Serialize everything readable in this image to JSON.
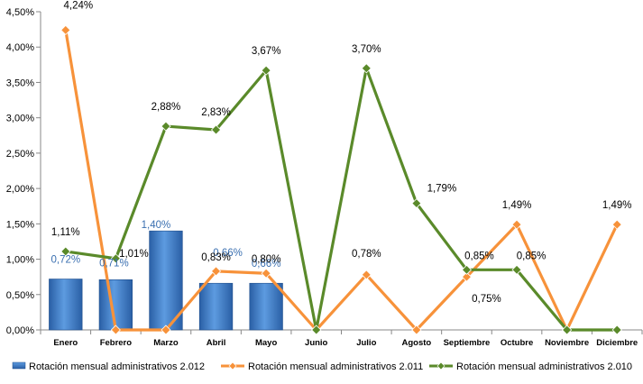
{
  "chart_data": {
    "type": "bar+line",
    "categories": [
      "Enero",
      "Febrero",
      "Marzo",
      "Abril",
      "Mayo",
      "Junio",
      "Julio",
      "Agosto",
      "Septiembre",
      "Octubre",
      "Noviembre",
      "Diciembre"
    ],
    "ylim": [
      0,
      4.5
    ],
    "yticks": [
      "0,00%",
      "0,50%",
      "1,00%",
      "1,50%",
      "2,00%",
      "2,50%",
      "3,00%",
      "3,50%",
      "4,00%",
      "4,50%"
    ],
    "grid": false,
    "legend_position": "bottom",
    "series": [
      {
        "name": "Rotación mensual administrativos 2.012",
        "kind": "bar",
        "color": "#3b78c3",
        "values": [
          0.72,
          0.71,
          1.4,
          0.66,
          0.66,
          null,
          null,
          null,
          null,
          null,
          null,
          null
        ],
        "labels": [
          "0,72%",
          "0,71%",
          "1,40%",
          "0,66%",
          "0,66%",
          "",
          "",
          "",
          "",
          "",
          "",
          ""
        ]
      },
      {
        "name": "Rotación mensual administrativos 2.011",
        "kind": "line",
        "color": "#f7923a",
        "values": [
          4.24,
          0.0,
          0.0,
          0.83,
          0.8,
          0.0,
          0.78,
          0.0,
          0.75,
          1.49,
          0.0,
          1.49
        ],
        "labels": [
          "4,24%",
          "",
          "",
          "0,83%",
          "0,80%",
          "",
          "0,78%",
          "",
          "0,75%",
          "1,49%",
          "",
          "1,49%"
        ]
      },
      {
        "name": "Rotación mensual administrativos 2.010",
        "kind": "line",
        "color": "#5a8a2a",
        "values": [
          1.11,
          1.01,
          2.88,
          2.83,
          3.67,
          0.0,
          3.7,
          1.79,
          0.85,
          0.85,
          0.0,
          0.0
        ],
        "labels": [
          "1,11%",
          "1,01%",
          "2,88%",
          "2,83%",
          "3,67%",
          "",
          "3,70%",
          "1,79%",
          "0,85%",
          "0,85%",
          "",
          ""
        ]
      }
    ]
  }
}
